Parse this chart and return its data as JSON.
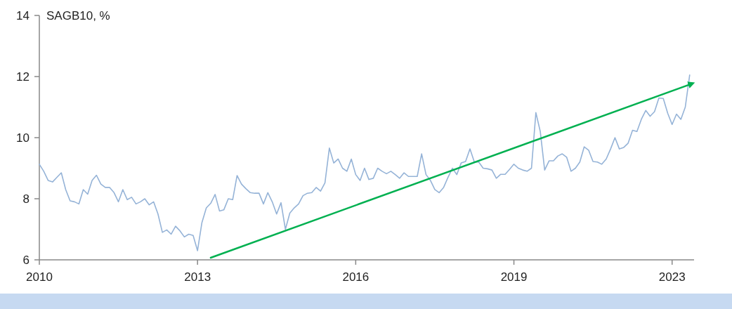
{
  "chart_data": {
    "type": "line",
    "title": "SAGB10, %",
    "categories": [
      "2010",
      null,
      null,
      null,
      null,
      null,
      null,
      null,
      null,
      null,
      null,
      null,
      null,
      null,
      null,
      null,
      null,
      null,
      null,
      null,
      null,
      null,
      null,
      null,
      null,
      null,
      null,
      null,
      null,
      null,
      null,
      null,
      null,
      null,
      null,
      null,
      "2013",
      null,
      null,
      null,
      null,
      null,
      null,
      null,
      null,
      null,
      null,
      null,
      null,
      null,
      null,
      null,
      null,
      null,
      null,
      null,
      null,
      null,
      null,
      null,
      null,
      null,
      null,
      null,
      null,
      null,
      null,
      null,
      null,
      null,
      null,
      null,
      "2016",
      null,
      null,
      null,
      null,
      null,
      null,
      null,
      null,
      null,
      null,
      null,
      null,
      null,
      null,
      null,
      null,
      null,
      null,
      null,
      null,
      null,
      null,
      null,
      null,
      null,
      null,
      null,
      null,
      null,
      null,
      null,
      null,
      null,
      null,
      null,
      "2019",
      null,
      null,
      null,
      null,
      null,
      null,
      null,
      null,
      null,
      null,
      null,
      null,
      null,
      null,
      null,
      null,
      null,
      null,
      null,
      null,
      null,
      null,
      null,
      null,
      null,
      null,
      null,
      null,
      null,
      null,
      null,
      null,
      null,
      null,
      null,
      "2023",
      null,
      null,
      null,
      null
    ],
    "series": [
      {
        "color": "#95b3d7",
        "values": [
          9.13,
          8.9,
          8.6,
          8.55,
          8.7,
          8.85,
          8.3,
          7.93,
          7.9,
          7.83,
          8.3,
          8.15,
          8.6,
          8.77,
          8.48,
          8.37,
          8.37,
          8.2,
          7.9,
          8.3,
          7.97,
          8.05,
          7.83,
          7.9,
          8.0,
          7.8,
          7.9,
          7.5,
          6.9,
          6.98,
          6.84,
          7.1,
          6.95,
          6.75,
          6.84,
          6.8,
          6.3,
          7.22,
          7.7,
          7.85,
          8.14,
          7.6,
          7.64,
          8.0,
          7.97,
          8.76,
          8.48,
          8.33,
          8.2,
          8.18,
          8.18,
          7.83,
          8.2,
          7.9,
          7.5,
          7.87,
          7.0,
          7.53,
          7.7,
          7.83,
          8.1,
          8.18,
          8.2,
          8.37,
          8.25,
          8.52,
          9.66,
          9.17,
          9.3,
          9.0,
          8.9,
          9.3,
          8.79,
          8.6,
          9.0,
          8.63,
          8.67,
          9.0,
          8.9,
          8.82,
          8.9,
          8.79,
          8.67,
          8.85,
          8.73,
          8.73,
          8.73,
          9.47,
          8.79,
          8.6,
          8.3,
          8.2,
          8.37,
          8.7,
          9.0,
          8.79,
          9.17,
          9.22,
          9.63,
          9.2,
          9.2,
          9.0,
          8.98,
          8.94,
          8.67,
          8.8,
          8.8,
          8.96,
          9.13,
          9.0,
          8.94,
          8.9,
          9.0,
          10.82,
          10.2,
          8.94,
          9.24,
          9.24,
          9.4,
          9.47,
          9.36,
          8.9,
          9.0,
          9.2,
          9.7,
          9.59,
          9.22,
          9.2,
          9.13,
          9.3,
          9.63,
          10.0,
          9.63,
          9.68,
          9.82,
          10.24,
          10.2,
          10.6,
          10.89,
          10.7,
          10.85,
          11.3,
          11.28,
          10.8,
          10.43,
          10.77,
          10.6,
          11.0,
          12.05
        ]
      },
      {
        "color": "#00b050",
        "values": [
          null,
          null,
          null,
          null,
          null,
          null,
          null,
          null,
          null,
          null,
          null,
          null,
          null,
          null,
          null,
          null,
          null,
          null,
          null,
          null,
          null,
          null,
          null,
          null,
          null,
          null,
          null,
          null,
          null,
          null,
          null,
          null,
          null,
          null,
          null,
          null,
          null,
          null,
          null,
          6.07,
          null,
          null,
          null,
          null,
          null,
          null,
          null,
          null,
          null,
          null,
          null,
          null,
          null,
          null,
          null,
          null,
          null,
          null,
          null,
          null,
          null,
          null,
          null,
          null,
          null,
          null,
          null,
          null,
          null,
          null,
          null,
          null,
          null,
          null,
          null,
          null,
          null,
          null,
          null,
          null,
          null,
          null,
          null,
          null,
          null,
          null,
          null,
          null,
          null,
          null,
          null,
          null,
          null,
          null,
          null,
          null,
          null,
          null,
          null,
          null,
          null,
          null,
          null,
          null,
          null,
          null,
          null,
          null,
          null,
          null,
          null,
          null,
          null,
          null,
          null,
          null,
          null,
          null,
          null,
          null,
          null,
          null,
          null,
          null,
          null,
          null,
          null,
          null,
          null,
          null,
          null,
          null,
          null,
          null,
          null,
          null,
          null,
          null,
          null,
          null,
          null,
          null,
          null,
          null,
          null,
          null,
          null,
          null,
          11.74
        ]
      }
    ],
    "ylim": [
      6,
      14
    ],
    "yticks": [
      6,
      8,
      10,
      12,
      14
    ],
    "grid": false
  }
}
